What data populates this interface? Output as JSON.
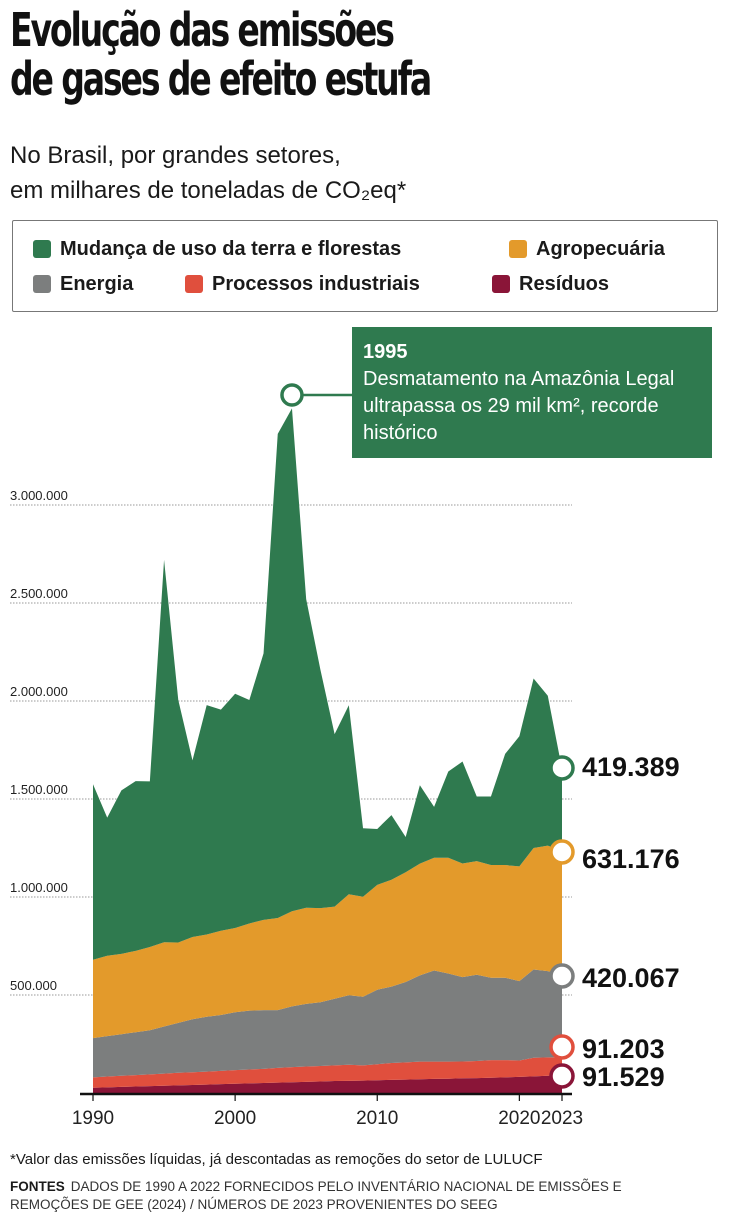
{
  "header": {
    "title_line1": "Evolução das emissões",
    "title_line2": "de gases de efeito estufa",
    "subtitle_line1": "No Brasil, por grandes setores,",
    "subtitle_line2": "em milhares de toneladas de CO₂eq*"
  },
  "legend": {
    "items": [
      {
        "label": "Mudança de uso da terra e florestas",
        "color": "#2f7a4f"
      },
      {
        "label": "Agropecuária",
        "color": "#e39a2b"
      },
      {
        "label": "Energia",
        "color": "#7c7e7e"
      },
      {
        "label": "Processos industriais",
        "color": "#e04f3d"
      },
      {
        "label": "Resíduos",
        "color": "#8a1538"
      }
    ]
  },
  "annotation": {
    "year": "1995",
    "text": "Desmatamento na Amazônia Legal ultrapassa os 29 mil km², recorde histórico",
    "point_year": 2004
  },
  "chart_data": {
    "type": "area",
    "stacked": true,
    "x": [
      1990,
      1991,
      1992,
      1993,
      1994,
      1995,
      1996,
      1997,
      1998,
      1999,
      2000,
      2001,
      2002,
      2003,
      2004,
      2005,
      2006,
      2007,
      2008,
      2009,
      2010,
      2011,
      2012,
      2013,
      2014,
      2015,
      2016,
      2017,
      2018,
      2019,
      2020,
      2021,
      2022,
      2023
    ],
    "ylim": [
      0,
      3500000
    ],
    "yticks": [
      500000,
      1000000,
      1500000,
      2000000,
      2500000,
      3000000
    ],
    "ytick_labels": [
      "500.000",
      "1.000.000",
      "1.500.000",
      "2.000.000",
      "2.500.000",
      "3.000.000"
    ],
    "xticks": [
      1990,
      2000,
      2010,
      2020,
      2023
    ],
    "xtick_labels": [
      "1990",
      "2000",
      "2010",
      "2020",
      "2023"
    ],
    "grid": true,
    "series": [
      {
        "name": "Resíduos",
        "color": "#8a1538",
        "values": [
          27000,
          29000,
          31000,
          33000,
          35000,
          37000,
          39000,
          41000,
          43000,
          45000,
          47000,
          49000,
          51000,
          53000,
          55000,
          57000,
          59000,
          61000,
          62000,
          63000,
          65000,
          67000,
          68000,
          70000,
          72000,
          73000,
          75000,
          76000,
          78000,
          80000,
          82000,
          85000,
          88000,
          91529
        ]
      },
      {
        "name": "Processos industriais",
        "color": "#e04f3d",
        "values": [
          53000,
          55000,
          57000,
          58000,
          60000,
          62000,
          64000,
          65000,
          66000,
          68000,
          70000,
          71000,
          72000,
          75000,
          77000,
          78000,
          79000,
          80000,
          82000,
          78000,
          82000,
          86000,
          88000,
          90000,
          88000,
          87000,
          86000,
          87000,
          90000,
          88000,
          84000,
          95000,
          94000,
          91203
        ]
      },
      {
        "name": "Energia",
        "color": "#7c7e7e",
        "values": [
          200000,
          206000,
          212000,
          219000,
          225000,
          240000,
          255000,
          270000,
          280000,
          285000,
          295000,
          300000,
          300000,
          295000,
          310000,
          320000,
          325000,
          340000,
          355000,
          350000,
          380000,
          390000,
          410000,
          440000,
          465000,
          450000,
          430000,
          440000,
          420000,
          420000,
          405000,
          450000,
          440000,
          420067
        ]
      },
      {
        "name": "Agropecuária",
        "color": "#e39a2b",
        "values": [
          400000,
          410000,
          410000,
          415000,
          425000,
          430000,
          410000,
          420000,
          420000,
          430000,
          430000,
          445000,
          460000,
          470000,
          485000,
          490000,
          480000,
          470000,
          515000,
          510000,
          535000,
          545000,
          560000,
          570000,
          575000,
          590000,
          580000,
          580000,
          575000,
          575000,
          585000,
          620000,
          640000,
          631176
        ]
      },
      {
        "name": "Mudança de uso da terra e florestas",
        "color": "#2f7a4f",
        "values": [
          895000,
          705000,
          834000,
          866000,
          845000,
          1951000,
          1237000,
          901000,
          1170000,
          1128000,
          1195000,
          1140000,
          1360000,
          2470000,
          2566000,
          1575000,
          1217000,
          880000,
          964000,
          350000,
          285000,
          330000,
          180000,
          400000,
          260000,
          440000,
          520000,
          330000,
          350000,
          567000,
          664000,
          865000,
          765000,
          419389
        ]
      }
    ],
    "end_labels": [
      "419.389",
      "631.176",
      "420.067",
      "91.203",
      "91.529"
    ]
  },
  "footnote": "*Valor das emissões líquidas, já descontadas as remoções do setor de LULUCF",
  "sources": {
    "label": "FONTES",
    "text": "DADOS DE 1990 A 2022 FORNECIDOS PELO INVENTÁRIO NACIONAL DE EMISSÕES E REMOÇÕES DE GEE (2024) / NÚMEROS DE 2023 PROVENIENTES DO SEEG"
  }
}
